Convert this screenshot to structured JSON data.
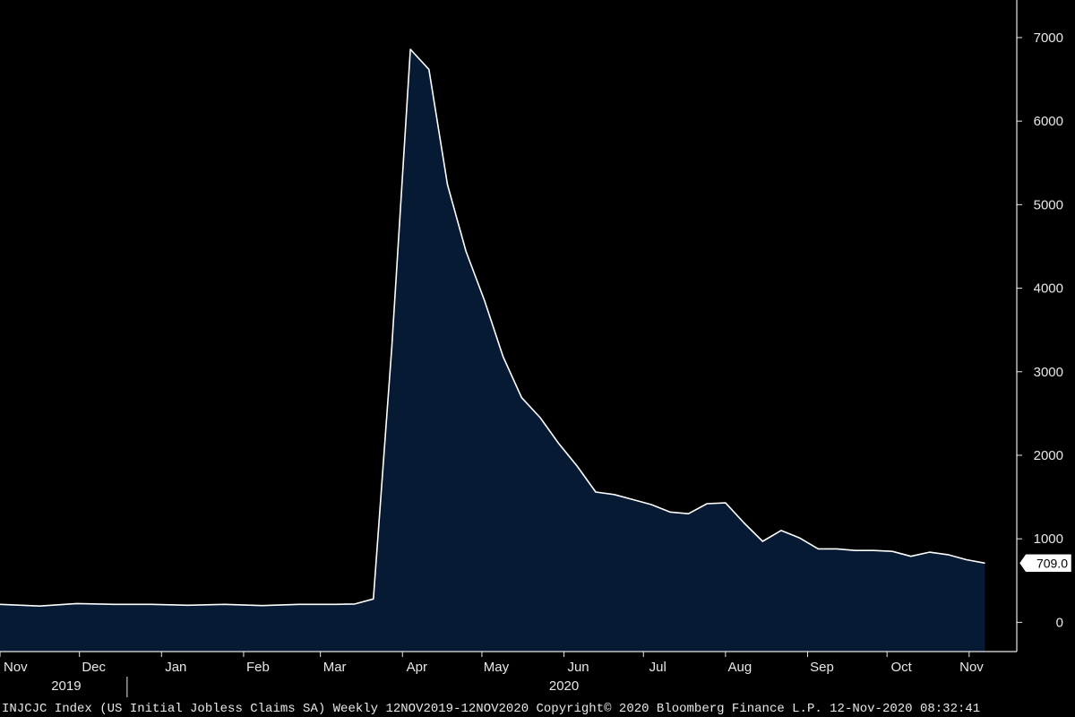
{
  "chart_data": {
    "type": "area",
    "title": "",
    "xlabel": "",
    "ylabel": "",
    "ylim": [
      -350,
      7450
    ],
    "xlim": [
      "2019-11-01",
      "2020-11-19"
    ],
    "grid": false,
    "legend": "none",
    "colors": {
      "fill": "#061a33",
      "line": "#ffffff",
      "background": "#000000",
      "text": "#e8e8e8"
    },
    "y_ticks": [
      0,
      1000,
      2000,
      3000,
      4000,
      5000,
      6000,
      7000
    ],
    "x_ticks": [
      {
        "label": "Nov",
        "date": "2019-11-01"
      },
      {
        "label": "Dec",
        "date": "2019-12-01"
      },
      {
        "label": "Jan",
        "date": "2020-01-01"
      },
      {
        "label": "Feb",
        "date": "2020-02-01"
      },
      {
        "label": "Mar",
        "date": "2020-03-01"
      },
      {
        "label": "Apr",
        "date": "2020-04-01"
      },
      {
        "label": "May",
        "date": "2020-05-01"
      },
      {
        "label": "Jun",
        "date": "2020-06-01"
      },
      {
        "label": "Jul",
        "date": "2020-07-01"
      },
      {
        "label": "Aug",
        "date": "2020-08-01"
      },
      {
        "label": "Sep",
        "date": "2020-09-01"
      },
      {
        "label": "Oct",
        "date": "2020-10-01"
      },
      {
        "label": "Nov",
        "date": "2020-11-01"
      }
    ],
    "year_labels": [
      {
        "label": "2019",
        "date": "2019-11-26"
      },
      {
        "label": "2020",
        "date": "2020-06-01"
      }
    ],
    "year_divider_date": "2019-12-19",
    "last_value_label": "709.0",
    "series": [
      {
        "x": [
          "2019-11-01",
          "2019-11-16",
          "2019-11-30",
          "2019-12-14",
          "2019-12-28",
          "2020-01-11",
          "2020-01-25",
          "2020-02-08",
          "2020-02-22",
          "2020-03-07",
          "2020-03-14",
          "2020-03-21",
          "2020-03-28",
          "2020-04-04",
          "2020-04-11",
          "2020-04-18",
          "2020-04-25",
          "2020-05-02",
          "2020-05-09",
          "2020-05-16",
          "2020-05-23",
          "2020-05-30",
          "2020-06-06",
          "2020-06-13",
          "2020-06-20",
          "2020-06-27",
          "2020-07-04",
          "2020-07-11",
          "2020-07-18",
          "2020-07-25",
          "2020-08-01",
          "2020-08-08",
          "2020-08-15",
          "2020-08-22",
          "2020-08-29",
          "2020-09-05",
          "2020-09-12",
          "2020-09-19",
          "2020-09-26",
          "2020-10-03",
          "2020-10-10",
          "2020-10-17",
          "2020-10-24",
          "2020-10-31",
          "2020-11-07"
        ],
        "values": [
          215,
          195,
          225,
          215,
          215,
          205,
          215,
          200,
          215,
          215,
          220,
          280,
          3300,
          6860,
          6620,
          5240,
          4440,
          3850,
          3180,
          2690,
          2450,
          2140,
          1870,
          1560,
          1530,
          1470,
          1410,
          1320,
          1300,
          1420,
          1430,
          1190,
          970,
          1100,
          1010,
          880,
          880,
          860,
          860,
          850,
          790,
          840,
          810,
          750,
          709
        ]
      }
    ]
  },
  "footer": {
    "text": "INJCJC Index (US Initial Jobless Claims SA)  Weekly 12NOV2019-12NOV2020   Copyright© 2020 Bloomberg Finance L.P.     12-Nov-2020 08:32:41"
  }
}
